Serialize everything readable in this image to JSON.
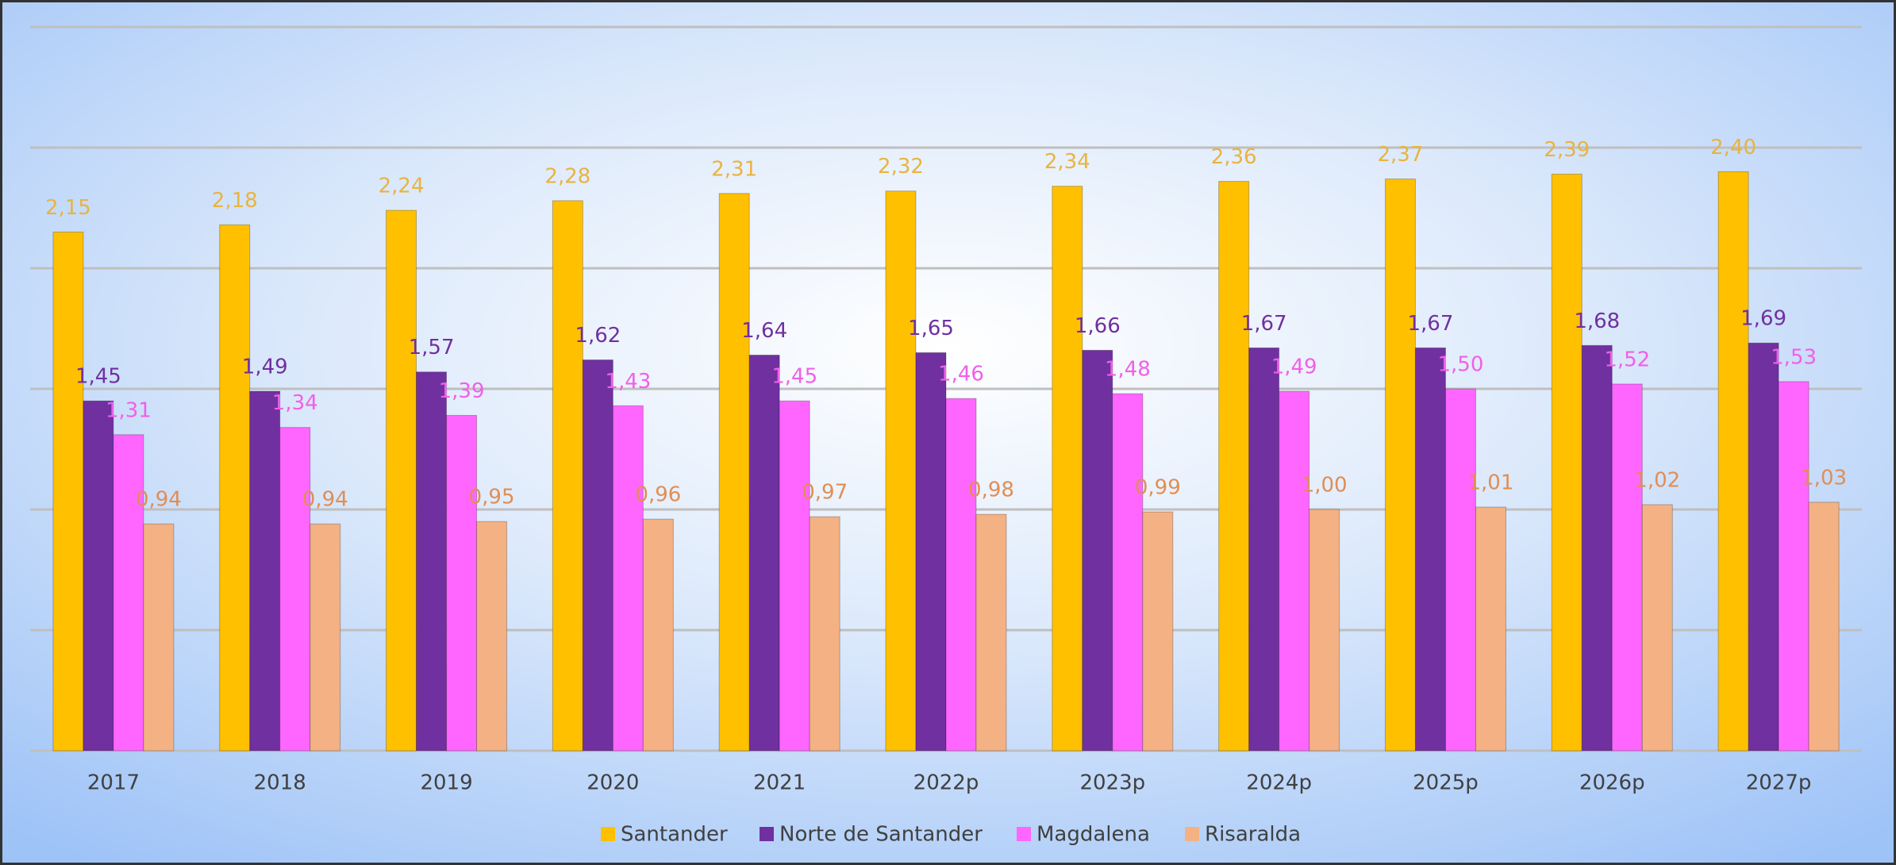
{
  "chart_data": {
    "type": "bar",
    "categories": [
      "2017",
      "2018",
      "2019",
      "2020",
      "2021",
      "2022p",
      "2023p",
      "2024p",
      "2025p",
      "2026p",
      "2027p"
    ],
    "series": [
      {
        "name": "Santander",
        "color": "#FFC000",
        "label_color": "#E8B440",
        "values": [
          2.15,
          2.18,
          2.24,
          2.28,
          2.31,
          2.32,
          2.34,
          2.36,
          2.37,
          2.39,
          2.4
        ],
        "value_labels": [
          "2,15",
          "2,18",
          "2,24",
          "2,28",
          "2,31",
          "2,32",
          "2,34",
          "2,36",
          "2,37",
          "2,39",
          "2,40"
        ]
      },
      {
        "name": "Norte de Santander",
        "color": "#7030A0",
        "label_color": "#7030A0",
        "values": [
          1.45,
          1.49,
          1.57,
          1.62,
          1.64,
          1.65,
          1.66,
          1.67,
          1.67,
          1.68,
          1.69
        ],
        "value_labels": [
          "1,45",
          "1,49",
          "1,57",
          "1,62",
          "1,64",
          "1,65",
          "1,66",
          "1,67",
          "1,67",
          "1,68",
          "1,69"
        ]
      },
      {
        "name": "Magdalena",
        "color": "#FF66FF",
        "label_color": "#F060E8",
        "values": [
          1.31,
          1.34,
          1.39,
          1.43,
          1.45,
          1.46,
          1.48,
          1.49,
          1.5,
          1.52,
          1.53
        ],
        "value_labels": [
          "1,31",
          "1,34",
          "1,39",
          "1,43",
          "1,45",
          "1,46",
          "1,48",
          "1,49",
          "1,50",
          "1,52",
          "1,53"
        ]
      },
      {
        "name": "Risaralda",
        "color": "#F4B183",
        "label_color": "#E08E55",
        "values": [
          0.94,
          0.94,
          0.95,
          0.96,
          0.97,
          0.98,
          0.99,
          1.0,
          1.01,
          1.02,
          1.03
        ],
        "value_labels": [
          "0,94",
          "0,94",
          "0,95",
          "0,96",
          "0,97",
          "0,98",
          "0,99",
          "1,00",
          "1,01",
          "1,02",
          "1,03"
        ]
      }
    ],
    "ylim": [
      0,
      3
    ],
    "yticks": [
      0,
      0.5,
      1,
      1.5,
      2,
      2.5,
      3
    ],
    "grid": true,
    "legend": "bottom"
  }
}
